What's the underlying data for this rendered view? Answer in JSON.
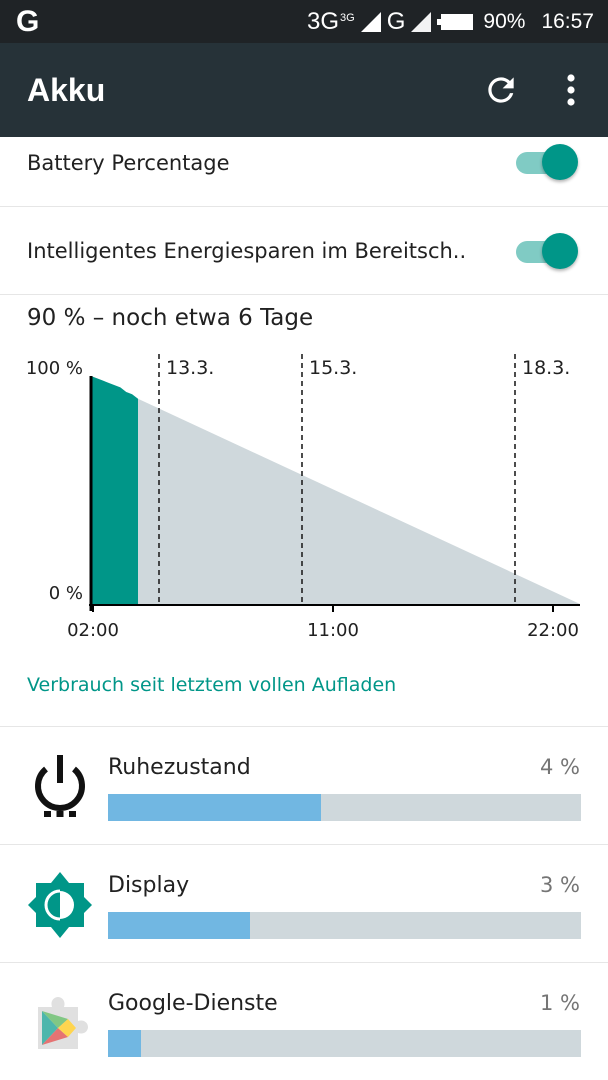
{
  "status_bar": {
    "left_icon": "google-g-icon",
    "left_text": "G",
    "network1": "3G",
    "network1_sup": "3G",
    "network2": "G",
    "battery_percent": "90%",
    "time": "16:57"
  },
  "app_bar": {
    "title": "Akku",
    "refresh_icon": "refresh-icon",
    "more_icon": "more-vert-icon"
  },
  "settings": [
    {
      "label": "Battery Percentage",
      "enabled": true
    },
    {
      "label": "Intelligentes Energiesparen im Bereitsch..",
      "enabled": true
    }
  ],
  "chart_data": {
    "type": "area",
    "title": "90 % – noch etwa 6 Tage",
    "y_tick_labels": [
      "100 %",
      "0 %"
    ],
    "x_tick_labels": [
      "02:00",
      "11:00",
      "22:00"
    ],
    "date_markers": [
      "13.3.",
      "15.3.",
      "18.3."
    ],
    "ylim": [
      0,
      100
    ],
    "series": [
      {
        "values": [
          100,
          99,
          98,
          97,
          96,
          95,
          93,
          92,
          90
        ],
        "color": "#009688"
      },
      {
        "values": [
          90,
          0
        ],
        "color": "#cfd8dc"
      }
    ]
  },
  "usage_link": "Verbrauch seit letztem vollen Aufladen",
  "usage_items": [
    {
      "name": "Ruhezustand",
      "percent": "4 %",
      "fill": 0.45,
      "icon": "power-standby-icon"
    },
    {
      "name": "Display",
      "percent": "3 %",
      "fill": 0.3,
      "icon": "brightness-icon"
    },
    {
      "name": "Google-Dienste",
      "percent": "1 %",
      "fill": 0.07,
      "icon": "google-play-services-icon"
    }
  ],
  "colors": {
    "accent": "#009688",
    "app_bar": "#263238",
    "status_bar": "#1f2326",
    "bar_fill": "#71b7e2",
    "bar_track": "#cfd8dc"
  }
}
